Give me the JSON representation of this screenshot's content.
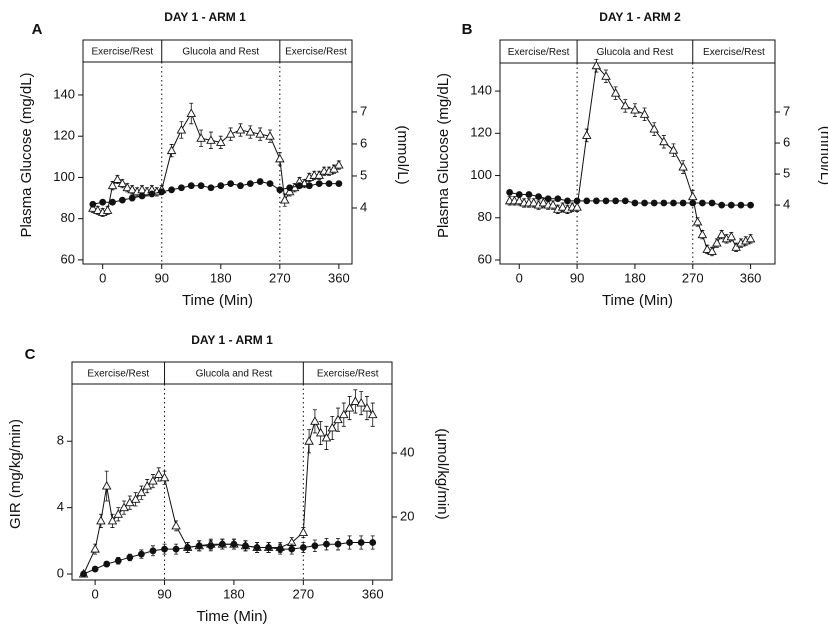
{
  "chart_data": [
    {
      "type": "line",
      "panel": "A",
      "title": "DAY 1 - ARM 1",
      "x_label": "Time (Min)",
      "y_label": "Plasma Glucose (mg/dL)",
      "y2_label": "(mmol/L)",
      "phases": [
        "Exercise/Rest",
        "Glucola and Rest",
        "Exercise/Rest"
      ],
      "phase_boundaries": [
        90,
        270
      ],
      "xlim": [
        -30,
        380
      ],
      "xticks": [
        0,
        90,
        180,
        270,
        360
      ],
      "ylim": [
        58,
        156
      ],
      "yticks": [
        60,
        80,
        100,
        120,
        140
      ],
      "y2lim": [
        2.25,
        8.56
      ],
      "y2ticks": [
        4,
        5,
        6,
        7
      ],
      "series": [
        {
          "marker": "triangle",
          "color": "#111111",
          "x": [
            -15,
            -7.5,
            0,
            7.5,
            15,
            22.5,
            30,
            37.5,
            45,
            52.5,
            60,
            67.5,
            75,
            82.5,
            90,
            105,
            120,
            135,
            150,
            165,
            180,
            195,
            210,
            225,
            240,
            255,
            270,
            277.5,
            285,
            292.5,
            300,
            307.5,
            315,
            322.5,
            330,
            337.5,
            345,
            352.5,
            360
          ],
          "values": [
            85,
            84,
            83,
            84,
            96,
            99,
            97,
            95,
            94,
            93,
            94,
            93,
            94,
            93,
            94,
            113,
            123,
            131,
            119,
            118,
            117,
            121,
            123,
            122,
            121,
            120,
            109,
            89,
            93,
            95,
            98,
            97,
            100,
            101,
            101,
            103,
            103,
            104,
            106
          ],
          "errors": [
            2,
            2,
            2,
            2,
            2,
            2,
            2,
            2,
            2,
            2,
            2,
            2,
            2,
            2,
            2,
            3,
            4,
            5,
            4,
            4,
            3,
            3,
            3,
            3,
            3,
            3,
            3,
            3,
            2,
            2,
            2,
            2,
            2,
            2,
            2,
            2,
            2,
            2,
            2
          ]
        },
        {
          "marker": "circle",
          "color": "#111111",
          "x": [
            -15,
            0,
            15,
            30,
            45,
            60,
            75,
            90,
            105,
            120,
            135,
            150,
            165,
            180,
            195,
            210,
            225,
            240,
            255,
            270,
            285,
            300,
            315,
            330,
            345,
            360
          ],
          "values": [
            87,
            88,
            88,
            89,
            90,
            91,
            92,
            93,
            94,
            95,
            96,
            96,
            95,
            96,
            97,
            96,
            97,
            98,
            97,
            94,
            95,
            96,
            96,
            97,
            97,
            97
          ]
        }
      ]
    },
    {
      "type": "line",
      "panel": "B",
      "title": "DAY 1 - ARM 2",
      "x_label": "Time (Min)",
      "y_label": "Plasma Glucose (mg/dL)",
      "y2_label": "(mmol/L)",
      "phases": [
        "Exercise/Rest",
        "Glucola and Rest",
        "Exercise/Rest"
      ],
      "phase_boundaries": [
        90,
        270
      ],
      "xlim": [
        -30,
        398
      ],
      "xticks": [
        0,
        90,
        180,
        270,
        360
      ],
      "ylim": [
        58.1,
        153.3
      ],
      "yticks": [
        60,
        80,
        100,
        120,
        140
      ],
      "y2lim": [
        2.1,
        8.58
      ],
      "y2ticks": [
        4,
        5,
        6,
        7
      ],
      "series": [
        {
          "marker": "triangle",
          "color": "#111111",
          "x": [
            -15,
            -7.5,
            0,
            7.5,
            15,
            22.5,
            30,
            37.5,
            45,
            52.5,
            60,
            67.5,
            75,
            82.5,
            90,
            105,
            120,
            135,
            150,
            165,
            180,
            195,
            210,
            225,
            240,
            255,
            270,
            277.5,
            285,
            292.5,
            300,
            307.5,
            315,
            322.5,
            330,
            337.5,
            345,
            352.5,
            360
          ],
          "values": [
            88,
            88,
            88,
            87,
            87,
            87,
            86,
            87,
            86,
            86,
            84,
            85,
            84,
            85,
            85,
            119,
            152,
            147,
            139,
            133,
            131,
            129,
            122,
            116,
            112,
            104,
            90,
            78,
            72,
            65,
            64,
            68,
            72,
            70,
            71,
            66,
            68,
            69,
            70
          ],
          "errors": [
            2,
            2,
            2,
            2,
            2,
            2,
            2,
            2,
            2,
            2,
            2,
            2,
            2,
            2,
            2,
            3,
            3,
            3,
            3,
            3,
            3,
            3,
            3,
            3,
            3,
            3,
            3,
            2,
            2,
            2,
            2,
            2,
            2,
            2,
            2,
            2,
            2,
            2,
            2
          ]
        },
        {
          "marker": "circle",
          "color": "#111111",
          "x": [
            -15,
            0,
            15,
            30,
            45,
            60,
            75,
            90,
            105,
            120,
            135,
            150,
            165,
            180,
            195,
            210,
            225,
            240,
            255,
            270,
            285,
            300,
            315,
            330,
            345,
            360
          ],
          "values": [
            92,
            91,
            91,
            90,
            89,
            89,
            88,
            88,
            88,
            88,
            88,
            88,
            88,
            87,
            87,
            87,
            87,
            87,
            87,
            87,
            87,
            87,
            86,
            86,
            86,
            86
          ]
        }
      ]
    },
    {
      "type": "line",
      "panel": "C",
      "title": "DAY 1 - ARM 1",
      "x_label": "Time (Min)",
      "y_label": "GIR (mg/kg/min)",
      "y2_label": "(μmol/kg/min)",
      "phases": [
        "Exercise/Rest",
        "Glucola and Rest",
        "Exercise/Rest"
      ],
      "phase_boundaries": [
        90,
        270
      ],
      "xlim": [
        -30,
        385
      ],
      "xticks": [
        0,
        90,
        180,
        270,
        360
      ],
      "ylim": [
        -0.36,
        11.45
      ],
      "yticks": [
        0,
        4,
        8
      ],
      "y2lim": [
        0.3,
        61.6
      ],
      "y2ticks": [
        20,
        40
      ],
      "series": [
        {
          "marker": "triangle",
          "color": "#111111",
          "x": [
            -15,
            0,
            7.5,
            15,
            22.5,
            30,
            37.5,
            45,
            52.5,
            60,
            67.5,
            75,
            82.5,
            90,
            105,
            120,
            135,
            150,
            165,
            180,
            195,
            210,
            225,
            240,
            255,
            270,
            277.5,
            285,
            292.5,
            300,
            307.5,
            315,
            322.5,
            330,
            337.5,
            345,
            352.5,
            360
          ],
          "values": [
            0,
            1.5,
            3.2,
            5.3,
            3.2,
            3.6,
            4.0,
            4.3,
            4.5,
            4.9,
            5.3,
            5.6,
            6.0,
            5.8,
            2.9,
            1.6,
            1.7,
            1.8,
            1.8,
            1.8,
            1.7,
            1.6,
            1.6,
            1.6,
            1.9,
            2.5,
            8.0,
            9.2,
            8.5,
            8.2,
            8.8,
            9.3,
            9.6,
            10.0,
            10.4,
            10.3,
            10.0,
            9.6
          ],
          "errors": [
            0,
            0.3,
            0.4,
            0.9,
            0.4,
            0.4,
            0.4,
            0.4,
            0.4,
            0.4,
            0.4,
            0.4,
            0.4,
            0.4,
            0.3,
            0.3,
            0.3,
            0.3,
            0.3,
            0.3,
            0.3,
            0.3,
            0.3,
            0.3,
            0.3,
            0.3,
            0.7,
            0.7,
            0.7,
            0.7,
            0.7,
            0.7,
            0.7,
            0.7,
            0.7,
            0.7,
            0.7,
            0.7
          ]
        },
        {
          "marker": "circle",
          "color": "#111111",
          "x": [
            -15,
            0,
            15,
            30,
            45,
            60,
            75,
            90,
            105,
            120,
            135,
            150,
            165,
            180,
            195,
            210,
            225,
            240,
            255,
            270,
            285,
            300,
            315,
            330,
            345,
            360
          ],
          "values": [
            0,
            0.3,
            0.6,
            0.8,
            1.0,
            1.2,
            1.4,
            1.5,
            1.5,
            1.6,
            1.7,
            1.7,
            1.8,
            1.8,
            1.7,
            1.6,
            1.6,
            1.5,
            1.5,
            1.6,
            1.7,
            1.8,
            1.8,
            1.9,
            1.9,
            1.9
          ],
          "errors": [
            0.1,
            0.1,
            0.15,
            0.2,
            0.2,
            0.25,
            0.3,
            0.3,
            0.3,
            0.3,
            0.3,
            0.3,
            0.3,
            0.3,
            0.3,
            0.3,
            0.3,
            0.3,
            0.3,
            0.3,
            0.35,
            0.35,
            0.35,
            0.4,
            0.4,
            0.4
          ]
        }
      ]
    }
  ]
}
